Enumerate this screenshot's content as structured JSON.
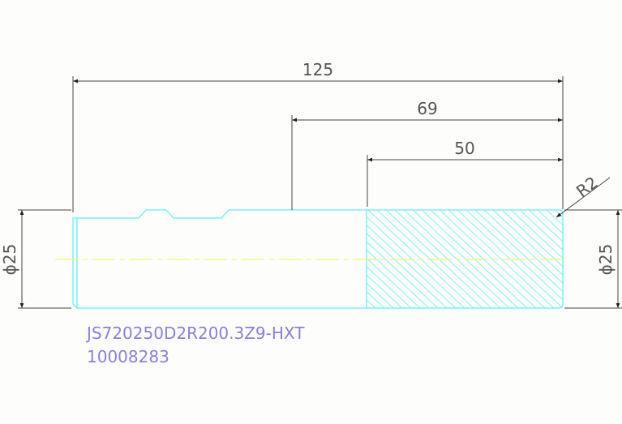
{
  "drawing": {
    "dimensions": {
      "overall_length": "125",
      "length_69": "69",
      "length_50": "50",
      "radius": "R2",
      "diameter_left": "ϕ25",
      "diameter_right": "ϕ25"
    },
    "part_number": "JS720250D2R200.3Z9-HXT",
    "code": "10008283",
    "colors": {
      "outline": "#5ff2f5",
      "centerline": "#f5f56a",
      "dimension": "#444444",
      "label": "#8a7ee6"
    }
  }
}
